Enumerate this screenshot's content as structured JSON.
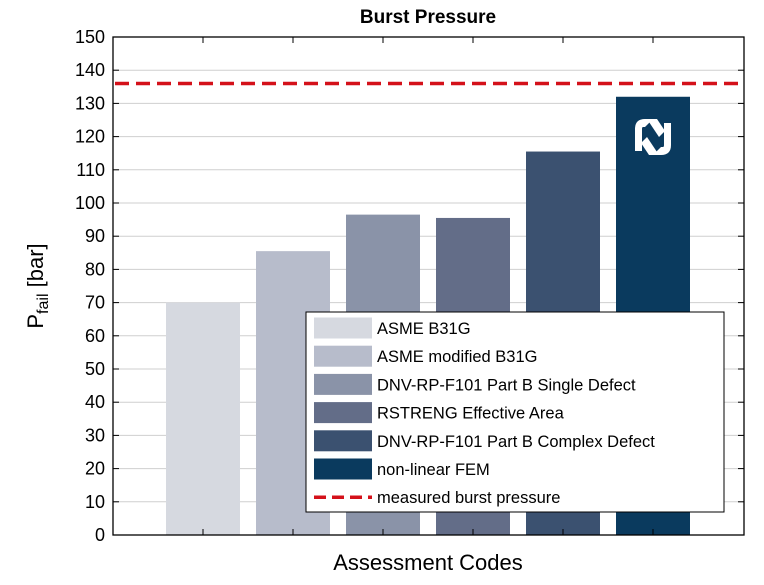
{
  "chart_data": {
    "type": "bar",
    "title": "Burst Pressure",
    "xlabel": "Assessment Codes",
    "ylabel_main": "P",
    "ylabel_sub": "fail",
    "ylabel_unit": " [bar]",
    "ylim": [
      0,
      150
    ],
    "yticks": [
      0,
      10,
      20,
      30,
      40,
      50,
      60,
      70,
      80,
      90,
      100,
      110,
      120,
      130,
      140,
      150
    ],
    "grid": "horizontal",
    "legend_position": "bottom-right",
    "series": [
      {
        "name": "ASME B31G",
        "value": 70,
        "color": "#d6d9e0"
      },
      {
        "name": "ASME modified B31G",
        "value": 85.5,
        "color": "#b7bccb"
      },
      {
        "name": "DNV-RP-F101 Part B Single Defect",
        "value": 96.5,
        "color": "#8a93a8"
      },
      {
        "name": "RSTRENG Effective Area",
        "value": 95.5,
        "color": "#636d88"
      },
      {
        "name": "DNV-RP-F101 Part B Complex Defect",
        "value": 115.5,
        "color": "#3b5170"
      },
      {
        "name": "non-linear FEM",
        "value": 132,
        "color": "#0a3a5e"
      }
    ],
    "reference_line": {
      "name": "measured burst pressure",
      "value": 136,
      "color": "#d4111a",
      "style": "dashed"
    }
  }
}
